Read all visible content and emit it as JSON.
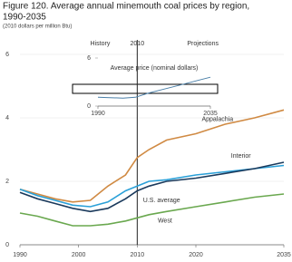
{
  "chart_data": [
    {
      "type": "line",
      "title": "Figure 120. Average annual minemouth coal prices by region,",
      "title_line2": "1990-2035",
      "subtitle": "(2010 dollars per million Btu)",
      "history_label": "History",
      "projections_label": "Projections",
      "divider": 2010,
      "x": [
        1990,
        1993,
        1996,
        1999,
        2002,
        2005,
        2008,
        2010,
        2012,
        2015,
        2020,
        2025,
        2030,
        2035
      ],
      "series": [
        {
          "name": "Appalachia",
          "color": "#d08a43",
          "values": [
            1.75,
            1.6,
            1.45,
            1.35,
            1.4,
            1.85,
            2.2,
            2.75,
            3.0,
            3.3,
            3.5,
            3.8,
            4.0,
            4.25
          ]
        },
        {
          "name": "Interior",
          "color": "#2aa0d8",
          "values": [
            1.75,
            1.55,
            1.4,
            1.25,
            1.2,
            1.35,
            1.7,
            1.85,
            2.0,
            2.05,
            2.2,
            2.3,
            2.4,
            2.5
          ]
        },
        {
          "name": "U.S. average",
          "color": "#1b3a5c",
          "values": [
            1.65,
            1.45,
            1.3,
            1.15,
            1.05,
            1.15,
            1.45,
            1.7,
            1.85,
            2.0,
            2.1,
            2.25,
            2.4,
            2.6
          ]
        },
        {
          "name": "West",
          "color": "#6aa84f",
          "values": [
            1.0,
            0.9,
            0.75,
            0.6,
            0.6,
            0.65,
            0.75,
            0.85,
            0.95,
            1.05,
            1.2,
            1.35,
            1.5,
            1.6
          ]
        }
      ],
      "xlim": [
        1990,
        2035
      ],
      "xticks": [
        1990,
        2000,
        2010,
        2020,
        2035
      ],
      "ylim": [
        0,
        6
      ],
      "yticks": [
        0,
        2,
        4,
        6
      ],
      "grid": true
    },
    {
      "type": "line",
      "title": "Average price (nominal dollars)",
      "x": [
        1990,
        2000,
        2005,
        2010,
        2015,
        2020,
        2025,
        2030,
        2035
      ],
      "series": [
        {
          "color": "#4a7fa8",
          "values": [
            1.1,
            1.0,
            1.1,
            1.6,
            2.0,
            2.4,
            2.8,
            3.2,
            3.6
          ]
        }
      ],
      "xlim": [
        1990,
        2035
      ],
      "xticks": [
        1990,
        2035
      ],
      "ylim": [
        0,
        6
      ],
      "yticks": [
        0,
        6
      ],
      "grid": false
    }
  ]
}
